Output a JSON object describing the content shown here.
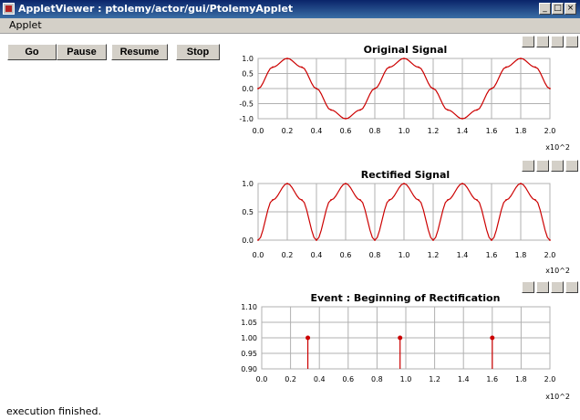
{
  "window": {
    "title": "AppletViewer : ptolemy/actor/gui/PtolemyApplet",
    "min_label": "_",
    "max_label": "□",
    "close_label": "×"
  },
  "menu": {
    "applet_label": "Applet"
  },
  "controls": {
    "go": "Go",
    "pause": "Pause",
    "resume": "Resume",
    "stop": "Stop"
  },
  "status": "execution finished.",
  "plot_tools": [
    "print-icon",
    "reset-axes-icon",
    "format-icon",
    "fill-icon"
  ],
  "colors": {
    "signal": "#cc0000",
    "grid": "#b0b0b0"
  },
  "chart_data": [
    {
      "type": "line",
      "title": "Original Signal",
      "x_multiplier": "x10^2",
      "xlim": [
        0,
        2.0
      ],
      "ylim": [
        -1.0,
        1.0
      ],
      "x_ticks": [
        "0.0",
        "0.2",
        "0.4",
        "0.6",
        "0.8",
        "1.0",
        "1.2",
        "1.4",
        "1.6",
        "1.8",
        "2.0"
      ],
      "y_ticks": [
        "1.0",
        "0.5",
        "0.0",
        "-0.5",
        "-1.0"
      ],
      "grid": true,
      "series": [
        {
          "color": "#cc0000",
          "x": [
            0.0,
            0.1,
            0.2,
            0.3,
            0.4,
            0.5,
            0.6,
            0.7,
            0.8,
            0.9,
            1.0,
            1.1,
            1.2,
            1.3,
            1.4,
            1.5,
            1.6,
            1.7,
            1.8,
            1.9,
            2.0
          ],
          "y": [
            0.0,
            0.71,
            1.0,
            0.71,
            0.0,
            -0.71,
            -1.0,
            -0.71,
            0.0,
            0.71,
            1.0,
            0.71,
            0.0,
            -0.71,
            -1.0,
            -0.71,
            0.0,
            0.71,
            1.0,
            0.71,
            0.0
          ]
        }
      ]
    },
    {
      "type": "line",
      "title": "Rectified Signal",
      "x_multiplier": "x10^2",
      "xlim": [
        0,
        2.0
      ],
      "ylim": [
        0,
        1.0
      ],
      "x_ticks": [
        "0.0",
        "0.2",
        "0.4",
        "0.6",
        "0.8",
        "1.0",
        "1.2",
        "1.4",
        "1.6",
        "1.8",
        "2.0"
      ],
      "y_ticks": [
        "1.0",
        "0.5",
        "0.0"
      ],
      "grid": true,
      "series": [
        {
          "color": "#cc0000",
          "x": [
            0.0,
            0.1,
            0.2,
            0.3,
            0.4,
            0.5,
            0.6,
            0.7,
            0.8,
            0.9,
            1.0,
            1.1,
            1.2,
            1.3,
            1.4,
            1.5,
            1.6,
            1.7,
            1.8,
            1.9,
            2.0
          ],
          "y": [
            0.0,
            0.71,
            1.0,
            0.71,
            0.0,
            0.71,
            1.0,
            0.71,
            0.0,
            0.71,
            1.0,
            0.71,
            0.0,
            0.71,
            1.0,
            0.71,
            0.0,
            0.71,
            1.0,
            0.71,
            0.0
          ]
        }
      ]
    },
    {
      "type": "scatter",
      "title": "Event : Beginning of Rectification",
      "x_multiplier": "x10^2",
      "xlim": [
        0,
        2.0
      ],
      "ylim": [
        0.9,
        1.1
      ],
      "x_ticks": [
        "0.0",
        "0.2",
        "0.4",
        "0.6",
        "0.8",
        "1.0",
        "1.2",
        "1.4",
        "1.6",
        "1.8",
        "2.0"
      ],
      "y_ticks": [
        "1.10",
        "1.05",
        "1.00",
        "0.95",
        "0.90"
      ],
      "grid": true,
      "series": [
        {
          "color": "#cc0000",
          "x": [
            0.32,
            0.96,
            1.6
          ],
          "y": [
            1.0,
            1.0,
            1.0
          ]
        }
      ]
    }
  ]
}
